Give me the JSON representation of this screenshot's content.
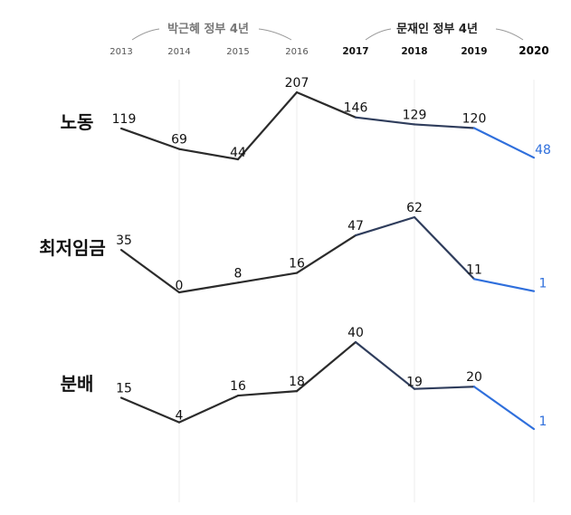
{
  "chart_data": {
    "type": "line",
    "years": [
      "2013",
      "2014",
      "2015",
      "2016",
      "2017",
      "2018",
      "2019",
      "2020"
    ],
    "periods": [
      {
        "label": "박근혜 정부 4년",
        "from": "2013",
        "to": "2016"
      },
      {
        "label": "문재인 정부 4년",
        "from": "2017",
        "to": "2020"
      }
    ],
    "series": [
      {
        "name": "노동",
        "values": [
          119,
          69,
          44,
          207,
          146,
          129,
          120,
          48
        ],
        "labels": [
          "119",
          "69",
          "44",
          "207",
          "146",
          "129",
          "120",
          "48"
        ]
      },
      {
        "name": "최저임금",
        "values": [
          35,
          0,
          8,
          16,
          47,
          62,
          11,
          1
        ],
        "labels": [
          "35",
          "0",
          "8",
          "16",
          "47",
          "62",
          "11",
          "1"
        ]
      },
      {
        "name": "분배",
        "values": [
          15,
          4,
          16,
          18,
          40,
          19,
          20,
          1
        ],
        "labels": [
          "15",
          "4",
          "16",
          "18",
          "40",
          "19",
          "20",
          "1"
        ]
      }
    ],
    "colors": {
      "past": "#2b2b2b",
      "present": "#2f3d5c",
      "latest": "#2f6fdc"
    },
    "grid": true,
    "legend": "none"
  }
}
